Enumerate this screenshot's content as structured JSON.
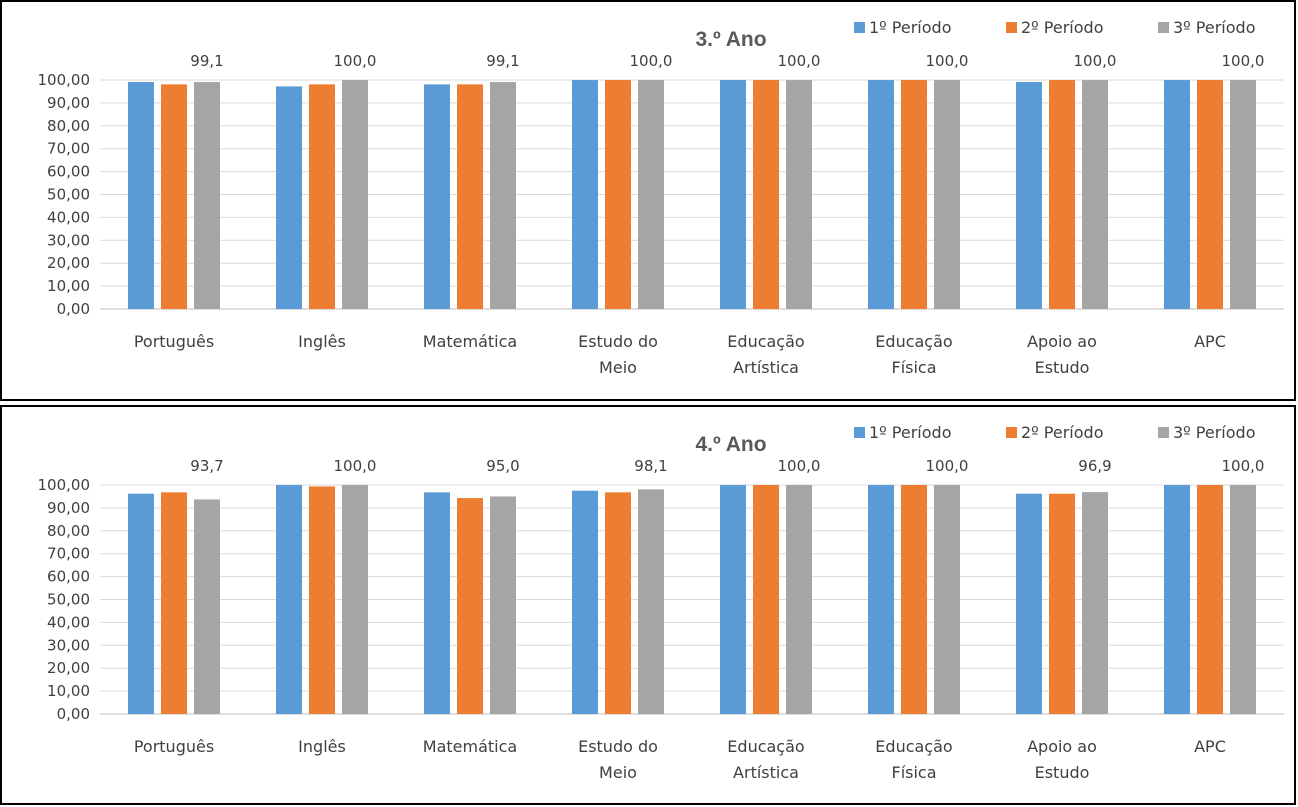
{
  "chart_data": [
    {
      "type": "bar",
      "title": "3.º Ano",
      "categories": [
        [
          "Português"
        ],
        [
          "Inglês"
        ],
        [
          "Matemática"
        ],
        [
          "Estudo do",
          "Meio"
        ],
        [
          "Educação",
          "Artística"
        ],
        [
          "Educação",
          "Física"
        ],
        [
          "Apoio ao",
          "Estudo"
        ],
        [
          "APC"
        ]
      ],
      "series": [
        {
          "name": "1º Período",
          "color": "#5B9BD5",
          "values": [
            99.1,
            97.2,
            98.1,
            100.0,
            100.0,
            100.0,
            99.1,
            100.0
          ]
        },
        {
          "name": "2º Período",
          "color": "#ED7D31",
          "values": [
            98.1,
            98.1,
            98.1,
            100.0,
            100.0,
            100.0,
            100.0,
            100.0
          ]
        },
        {
          "name": "3º Período",
          "color": "#A5A5A5",
          "values": [
            99.1,
            100.0,
            99.1,
            100.0,
            100.0,
            100.0,
            100.0,
            100.0
          ]
        }
      ],
      "data_labels": [
        "99,1",
        "100,0",
        "99,1",
        "100,0",
        "100,0",
        "100,0",
        "100,0",
        "100,0"
      ],
      "ylim": [
        0,
        100
      ],
      "y_ticks": [
        "0,00",
        "10,00",
        "20,00",
        "30,00",
        "40,00",
        "50,00",
        "60,00",
        "70,00",
        "80,00",
        "90,00",
        "100,00"
      ],
      "grid": true,
      "legend_position": "top-right"
    },
    {
      "type": "bar",
      "title": "4.º Ano",
      "categories": [
        [
          "Português"
        ],
        [
          "Inglês"
        ],
        [
          "Matemática"
        ],
        [
          "Estudo do",
          "Meio"
        ],
        [
          "Educação",
          "Artística"
        ],
        [
          "Educação",
          "Física"
        ],
        [
          "Apoio ao",
          "Estudo"
        ],
        [
          "APC"
        ]
      ],
      "series": [
        {
          "name": "1º Período",
          "color": "#5B9BD5",
          "values": [
            96.2,
            100.0,
            96.8,
            97.5,
            100.0,
            100.0,
            96.2,
            100.0
          ]
        },
        {
          "name": "2º Período",
          "color": "#ED7D31",
          "values": [
            96.8,
            99.4,
            94.3,
            96.8,
            100.0,
            100.0,
            96.2,
            100.0
          ]
        },
        {
          "name": "3º Período",
          "color": "#A5A5A5",
          "values": [
            93.7,
            100.0,
            95.0,
            98.1,
            100.0,
            100.0,
            96.9,
            100.0
          ]
        }
      ],
      "data_labels": [
        "93,7",
        "100,0",
        "95,0",
        "98,1",
        "100,0",
        "100,0",
        "96,9",
        "100,0"
      ],
      "ylim": [
        0,
        100
      ],
      "y_ticks": [
        "0,00",
        "10,00",
        "20,00",
        "30,00",
        "40,00",
        "50,00",
        "60,00",
        "70,00",
        "80,00",
        "90,00",
        "100,00"
      ],
      "grid": true,
      "legend_position": "top-right"
    }
  ]
}
